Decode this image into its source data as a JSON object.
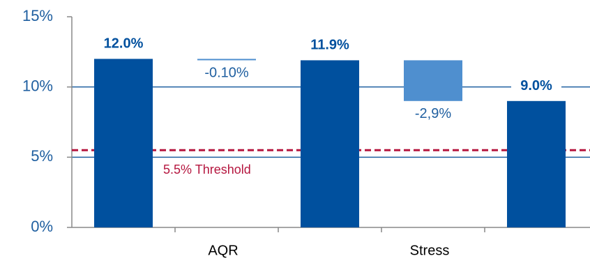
{
  "chart_data": {
    "type": "waterfall",
    "categories": [
      null,
      "AQR",
      null,
      "Stress",
      null
    ],
    "kinds": [
      "total",
      "change",
      "total",
      "change",
      "total"
    ],
    "values": [
      12.0,
      -0.1,
      11.9,
      -2.9,
      9.0
    ],
    "value_labels": [
      "12.0%",
      "-0.10%",
      "11.9%",
      "-2,9%",
      "9.0%"
    ],
    "colors": {
      "total": "#00509e",
      "change": "#4f8fcf"
    },
    "ylim": [
      0,
      15
    ],
    "yticks": [
      {
        "value": 0,
        "label": "0%"
      },
      {
        "value": 5,
        "label": "5%"
      },
      {
        "value": 10,
        "label": "10%"
      },
      {
        "value": 15,
        "label": "15%"
      }
    ],
    "grid": true,
    "threshold": {
      "value": 5.5,
      "label": "5.5% Threshold",
      "color": "#b5163f"
    }
  }
}
